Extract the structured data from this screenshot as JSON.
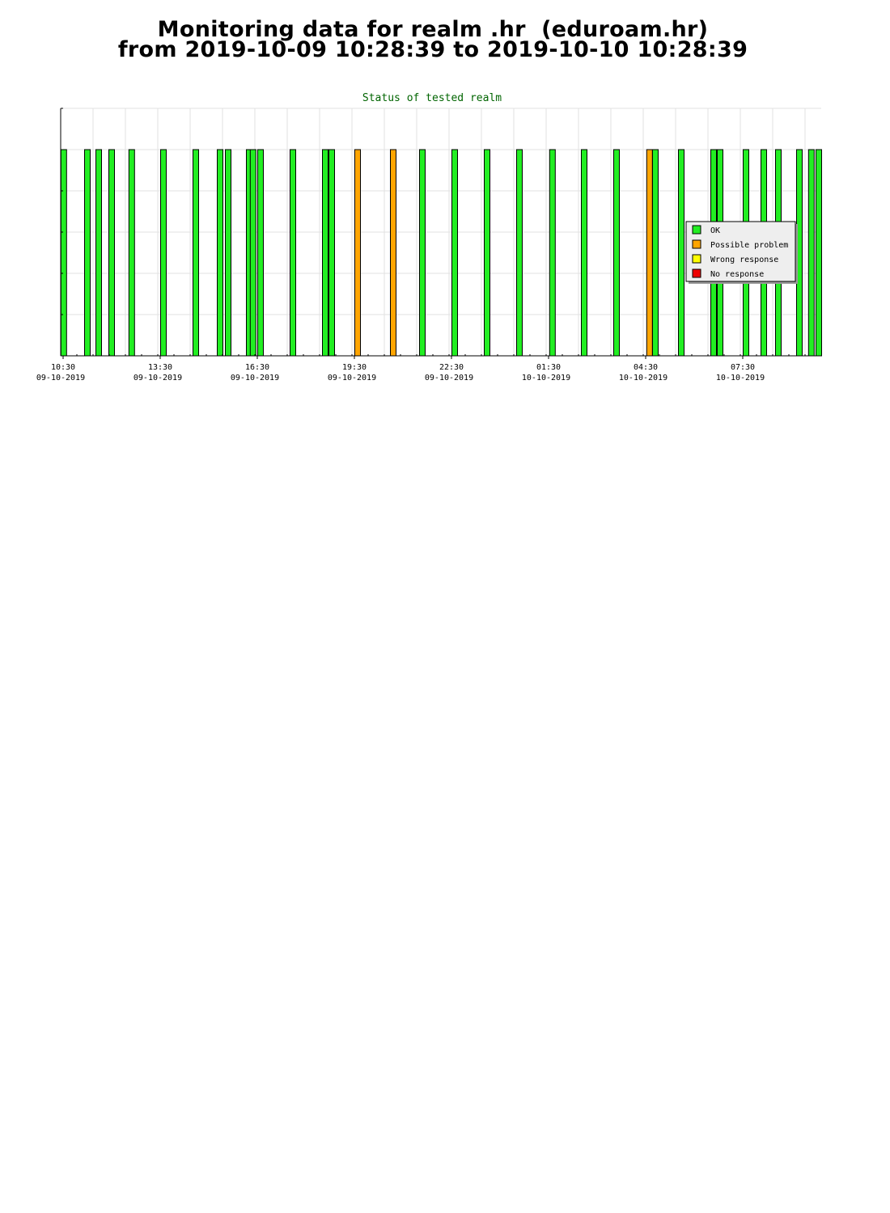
{
  "page": {
    "title_line1": "Monitoring data for realm .hr  (eduroam.hr)",
    "title_line2": "from 2019-10-09 10:28:39 to 2019-10-10 10:28:39"
  },
  "chart_data": {
    "type": "bar",
    "title": "Status of tested realm",
    "xlabel": "",
    "ylabel": "",
    "grid": true,
    "legend_position": "right",
    "x_range_hours": [
      0,
      23.5
    ],
    "x_ticks": [
      {
        "time": "10:30",
        "date": "09-10-2019",
        "hour": 0
      },
      {
        "time": "13:30",
        "date": "09-10-2019",
        "hour": 3
      },
      {
        "time": "16:30",
        "date": "09-10-2019",
        "hour": 6
      },
      {
        "time": "19:30",
        "date": "09-10-2019",
        "hour": 9
      },
      {
        "time": "22:30",
        "date": "09-10-2019",
        "hour": 12
      },
      {
        "time": "01:30",
        "date": "10-10-2019",
        "hour": 15
      },
      {
        "time": "04:30",
        "date": "10-10-2019",
        "hour": 18
      },
      {
        "time": "07:30",
        "date": "10-10-2019",
        "hour": 21
      }
    ],
    "legend": [
      {
        "label": "OK",
        "color": "#22ee22"
      },
      {
        "label": "Possible problem",
        "color": "#ffa500"
      },
      {
        "label": "Wrong response",
        "color": "#ffff00"
      },
      {
        "label": "No response",
        "color": "#ee0000"
      }
    ],
    "status_colors": {
      "OK": "#22ee22",
      "Possible problem": "#ffa500",
      "Wrong response": "#ffff00",
      "No response": "#ee0000"
    },
    "series": [
      {
        "status": "OK",
        "hour": 0.02
      },
      {
        "status": "OK",
        "hour": 0.75
      },
      {
        "status": "OK",
        "hour": 1.1
      },
      {
        "status": "OK",
        "hour": 1.5
      },
      {
        "status": "OK",
        "hour": 2.12
      },
      {
        "status": "OK",
        "hour": 3.1
      },
      {
        "status": "OK",
        "hour": 4.1
      },
      {
        "status": "OK",
        "hour": 4.85
      },
      {
        "status": "OK",
        "hour": 5.1
      },
      {
        "status": "OK",
        "hour": 5.75
      },
      {
        "status": "OK",
        "hour": 5.87
      },
      {
        "status": "OK",
        "hour": 6.1
      },
      {
        "status": "OK",
        "hour": 7.1
      },
      {
        "status": "OK",
        "hour": 8.1
      },
      {
        "status": "OK",
        "hour": 8.3
      },
      {
        "status": "Possible problem",
        "hour": 9.1
      },
      {
        "status": "Possible problem",
        "hour": 10.2
      },
      {
        "status": "OK",
        "hour": 11.1
      },
      {
        "status": "OK",
        "hour": 12.1
      },
      {
        "status": "OK",
        "hour": 13.1
      },
      {
        "status": "OK",
        "hour": 14.1
      },
      {
        "status": "OK",
        "hour": 15.12
      },
      {
        "status": "OK",
        "hour": 16.1
      },
      {
        "status": "OK",
        "hour": 17.1
      },
      {
        "status": "Possible problem",
        "hour": 18.12
      },
      {
        "status": "OK",
        "hour": 18.3
      },
      {
        "status": "OK",
        "hour": 19.1
      },
      {
        "status": "OK",
        "hour": 20.1
      },
      {
        "status": "OK",
        "hour": 20.3
      },
      {
        "status": "OK",
        "hour": 21.1
      },
      {
        "status": "OK",
        "hour": 21.65
      },
      {
        "status": "OK",
        "hour": 22.1
      },
      {
        "status": "OK",
        "hour": 22.75
      },
      {
        "status": "OK",
        "hour": 23.12
      },
      {
        "status": "OK",
        "hour": 23.35
      }
    ]
  }
}
